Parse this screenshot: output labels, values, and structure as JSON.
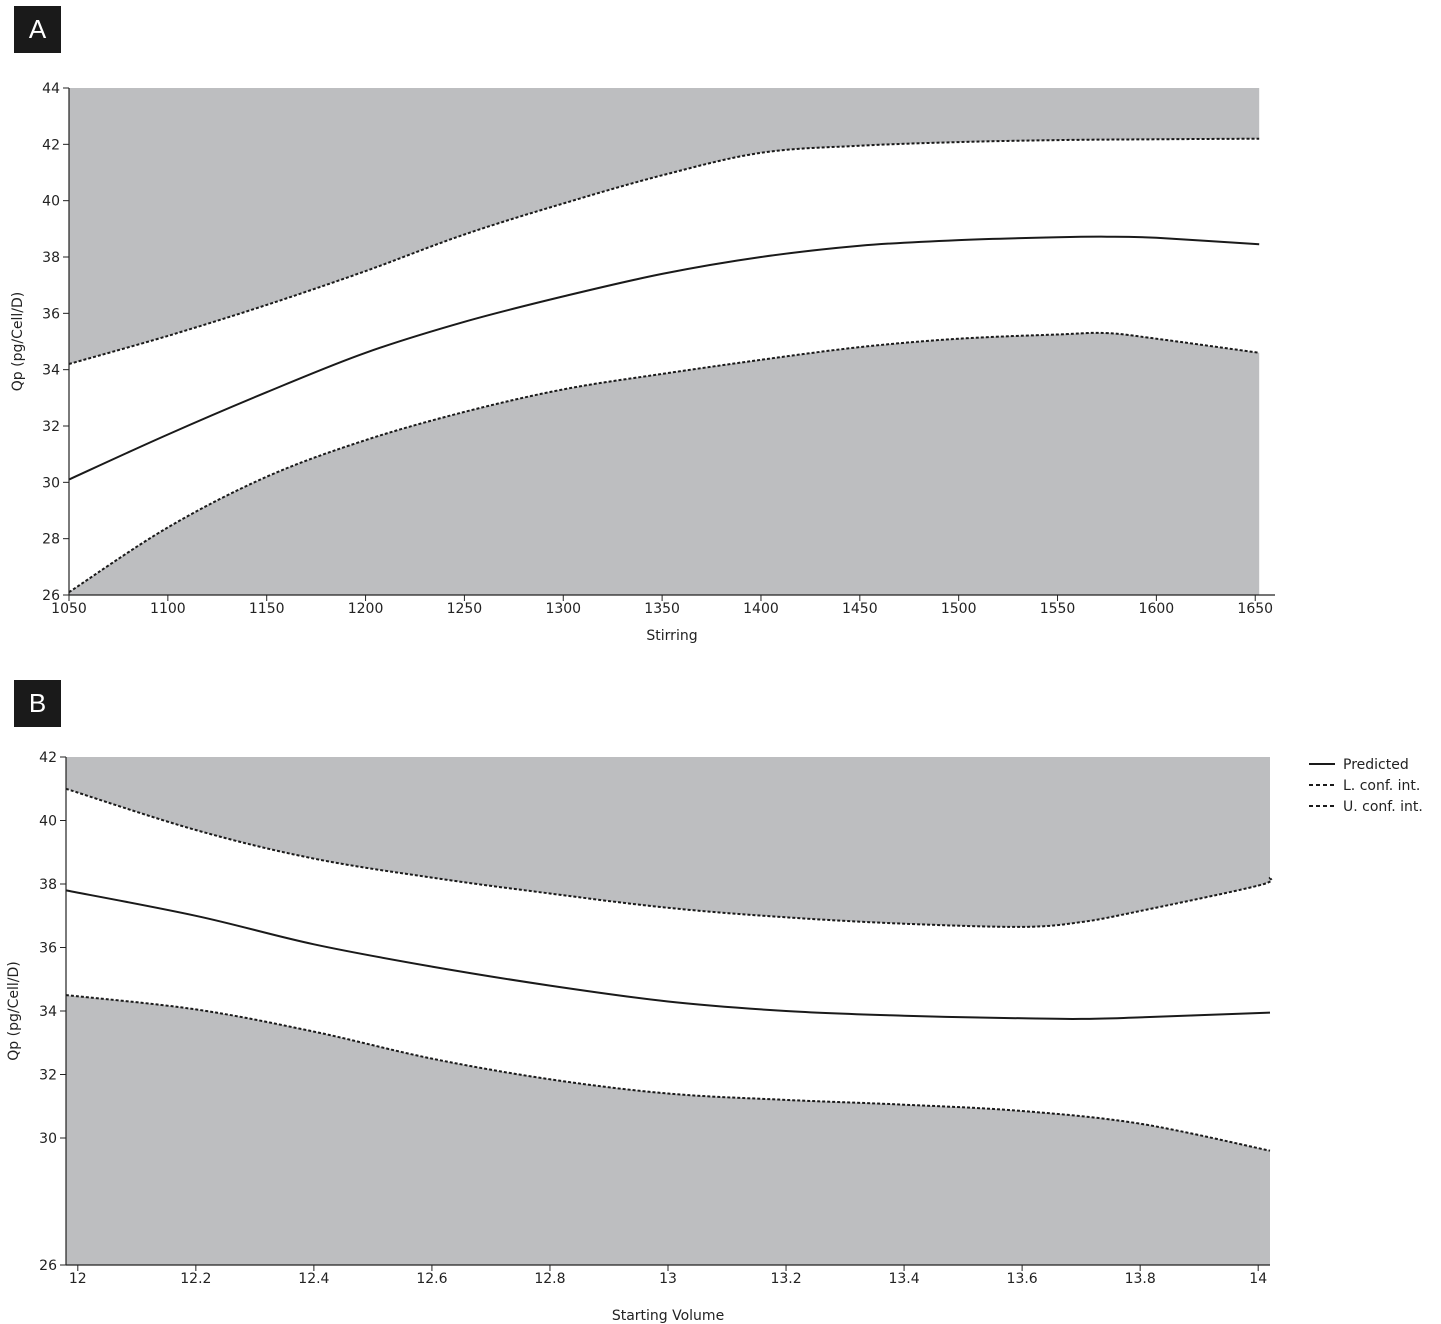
{
  "chart_data": [
    {
      "panel": "A",
      "type": "line",
      "xlabel": "Stirring",
      "ylabel": "Qp (pg/Cell/D)",
      "xlim": [
        1050,
        1660
      ],
      "ylim": [
        26,
        44
      ],
      "xticks": [
        1050,
        1100,
        1150,
        1200,
        1250,
        1300,
        1350,
        1400,
        1450,
        1500,
        1550,
        1600,
        1650
      ],
      "yticks": [
        26,
        28,
        30,
        32,
        34,
        36,
        38,
        40,
        42,
        44
      ],
      "fill_top": 44,
      "fill_bottom": 26,
      "x_end": 1652,
      "series": [
        {
          "name": "Predicted",
          "style": "solid",
          "x": [
            1050,
            1100,
            1150,
            1200,
            1250,
            1300,
            1350,
            1400,
            1450,
            1500,
            1550,
            1575,
            1600,
            1652
          ],
          "y": [
            30.1,
            31.7,
            33.2,
            34.6,
            35.7,
            36.6,
            37.4,
            38.0,
            38.4,
            38.6,
            38.7,
            38.72,
            38.68,
            38.45
          ]
        },
        {
          "name": "L. conf. int.",
          "style": "dashed",
          "x": [
            1050,
            1100,
            1150,
            1200,
            1250,
            1300,
            1350,
            1400,
            1450,
            1500,
            1550,
            1575,
            1600,
            1652
          ],
          "y": [
            26.1,
            28.4,
            30.2,
            31.5,
            32.5,
            33.3,
            33.85,
            34.35,
            34.8,
            35.1,
            35.25,
            35.3,
            35.1,
            34.6
          ]
        },
        {
          "name": "U. conf. int.",
          "style": "dashed",
          "x": [
            1050,
            1100,
            1150,
            1200,
            1250,
            1300,
            1350,
            1400,
            1450,
            1500,
            1550,
            1600,
            1652
          ],
          "y": [
            34.2,
            35.2,
            36.3,
            37.5,
            38.8,
            39.9,
            40.9,
            41.7,
            41.95,
            42.08,
            42.15,
            42.18,
            42.2
          ]
        }
      ]
    },
    {
      "panel": "B",
      "type": "line",
      "xlabel": "Starting Volume",
      "ylabel": "Qp (pg/Cell/D)",
      "xlim": [
        11.98,
        14.02
      ],
      "ylim": [
        26,
        42
      ],
      "xticks": [
        12,
        12.2,
        12.4,
        12.6,
        12.8,
        13,
        13.2,
        13.4,
        13.6,
        13.8,
        14
      ],
      "yticks": [
        26,
        30,
        32,
        34,
        36,
        38,
        40,
        42
      ],
      "fill_top": 42,
      "fill_bottom": 26,
      "x_end": 14.02,
      "legend_position": "right",
      "series": [
        {
          "name": "Predicted",
          "style": "solid",
          "x": [
            11.98,
            12.2,
            12.4,
            12.6,
            12.8,
            13.0,
            13.2,
            13.4,
            13.6,
            13.7,
            13.8,
            14.02
          ],
          "y": [
            37.8,
            37.0,
            36.1,
            35.4,
            34.8,
            34.3,
            34.0,
            33.85,
            33.77,
            33.75,
            33.8,
            33.95
          ]
        },
        {
          "name": "L. conf. int.",
          "style": "dashed",
          "x": [
            11.98,
            12.2,
            12.4,
            12.6,
            12.8,
            13.0,
            13.2,
            13.4,
            13.6,
            13.8,
            14.02
          ],
          "y": [
            34.5,
            34.05,
            33.35,
            32.5,
            31.85,
            31.4,
            31.2,
            31.05,
            30.85,
            30.45,
            29.6
          ]
        },
        {
          "name": "U. conf. int.",
          "style": "dashed",
          "x": [
            11.98,
            12.2,
            12.4,
            12.6,
            12.8,
            13.0,
            13.2,
            13.4,
            13.6,
            13.7,
            13.8,
            14.0,
            14.02
          ],
          "y": [
            41.0,
            39.7,
            38.8,
            38.2,
            37.7,
            37.25,
            36.95,
            36.75,
            36.65,
            36.8,
            37.15,
            37.95,
            38.2
          ]
        }
      ]
    }
  ]
}
